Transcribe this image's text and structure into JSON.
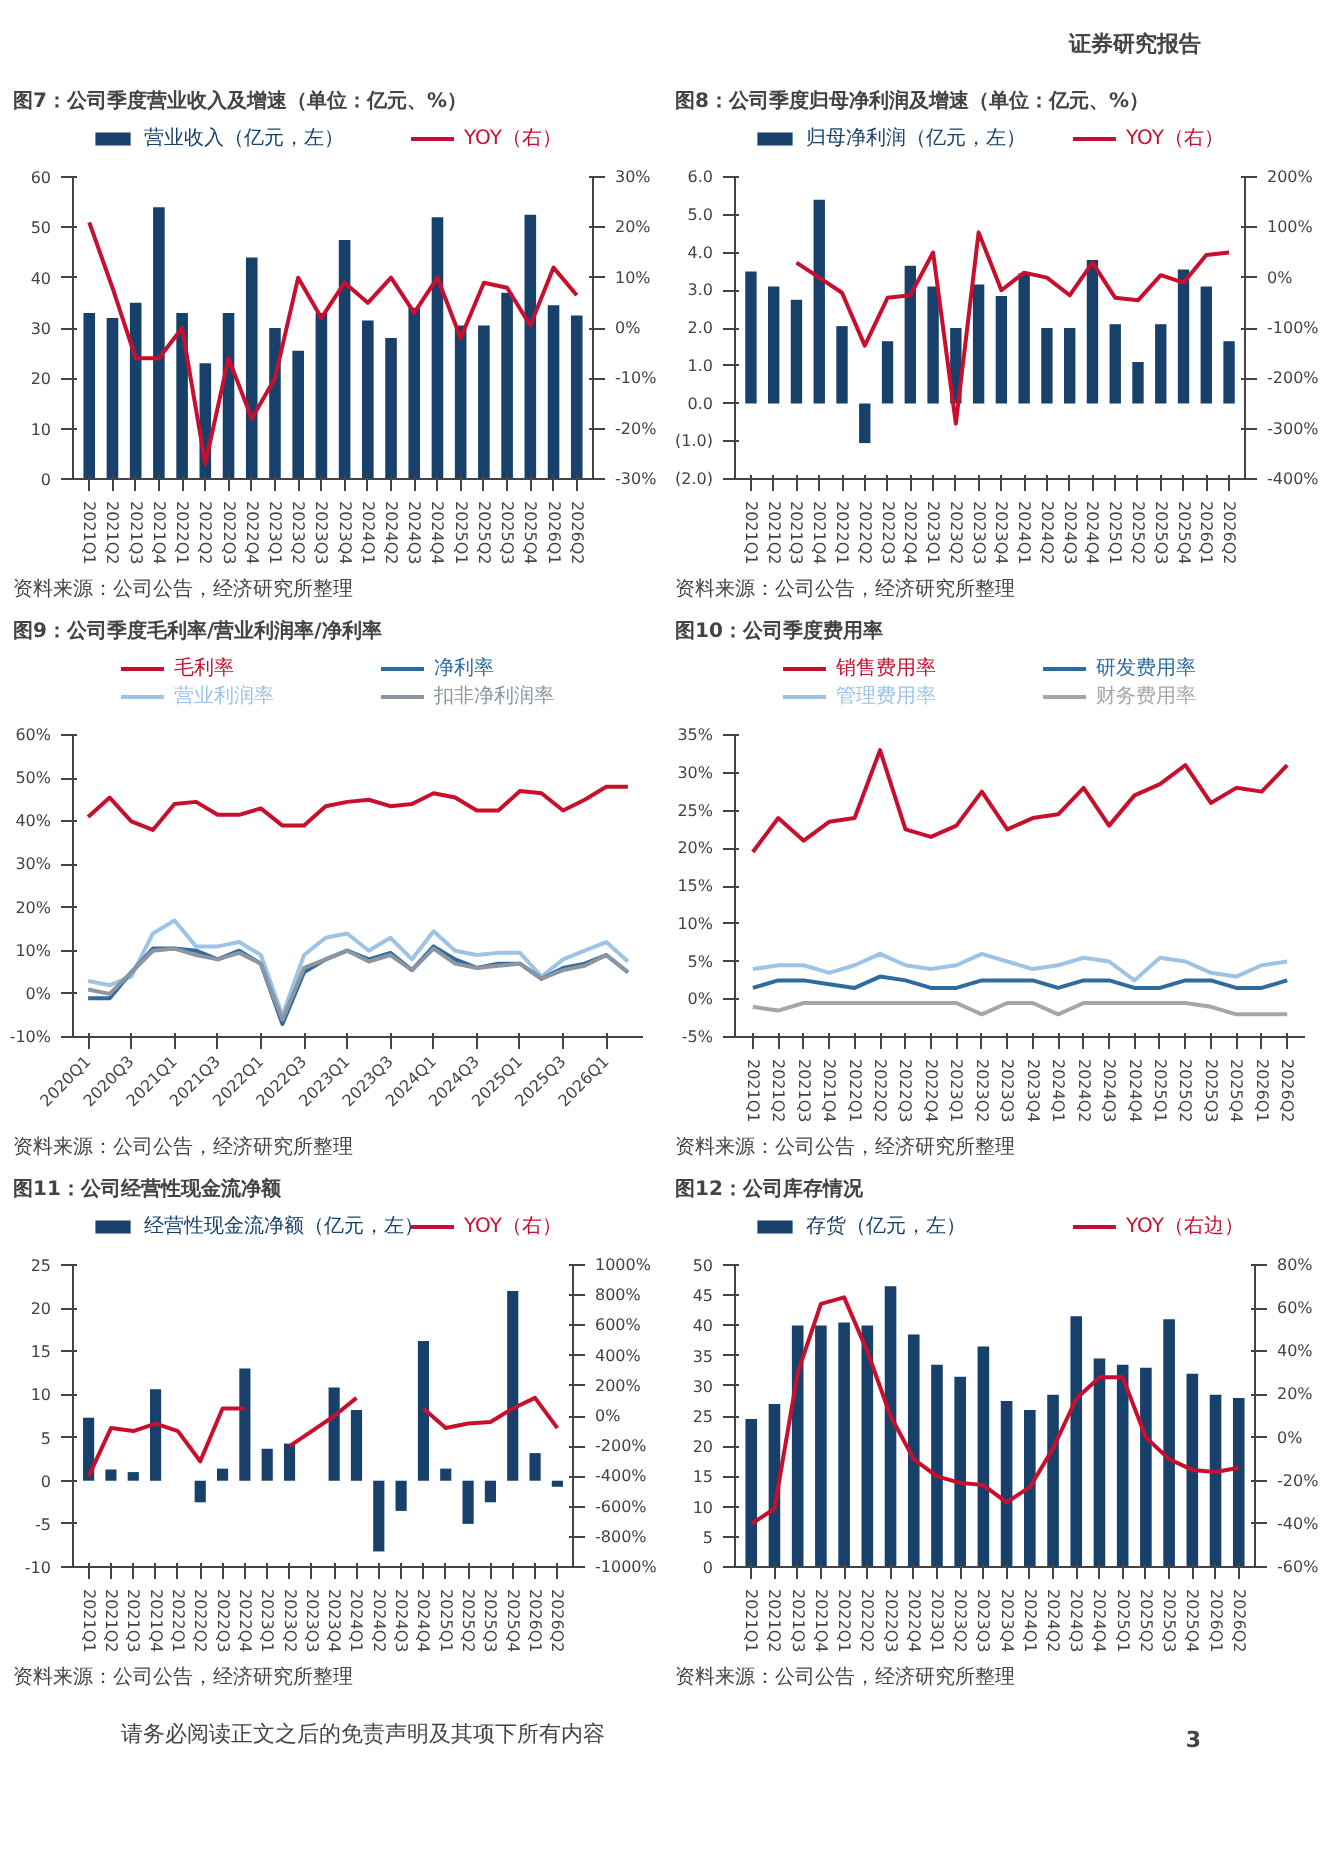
{
  "chart_data": [
    {
      "type": "bar",
      "title": "图7：公司季度营业收入及增速（单位：亿元、%）",
      "categories": [
        "2021Q1",
        "2021Q2",
        "2021Q3",
        "2021Q4",
        "2022Q1",
        "2022Q2",
        "2022Q3",
        "2022Q4",
        "2023Q1",
        "2023Q2",
        "2023Q3",
        "2023Q4",
        "2024Q1",
        "2024Q2",
        "2024Q3",
        "2024Q4",
        "2025Q1",
        "2025Q2",
        "2025Q3",
        "2025Q4",
        "2026Q1",
        "2026Q2"
      ],
      "series": [
        {
          "name": "营业收入（亿元，左）",
          "type": "bar",
          "color": "#17416b",
          "values": [
            33,
            32,
            35,
            54,
            33,
            23,
            33,
            44,
            30,
            25.5,
            33,
            47.5,
            31.5,
            28,
            34,
            52,
            30.5,
            30.5,
            37,
            52.5,
            34.5,
            32.5
          ]
        },
        {
          "name": "YOY（右）",
          "type": "line",
          "axis": "y2",
          "color": "#c8102e",
          "values": [
            21,
            8,
            -6,
            -6,
            0,
            -27,
            -6,
            -18,
            -10,
            10,
            2,
            9,
            5,
            10,
            3,
            10,
            -2,
            9,
            8,
            0.5,
            12,
            6.5
          ]
        }
      ],
      "ylim": [
        0,
        60
      ],
      "yticks": [
        0,
        10,
        20,
        30,
        40,
        50,
        60
      ],
      "y2lim": [
        -30,
        30
      ],
      "y2ticks": [
        {
          "value": -30,
          "label": "-30%"
        },
        {
          "value": -20,
          "label": "-20%"
        },
        {
          "value": -10,
          "label": "-10%"
        },
        {
          "value": 0,
          "label": "0%"
        },
        {
          "value": 10,
          "label": "10%"
        },
        {
          "value": 20,
          "label": "20%"
        },
        {
          "value": 30,
          "label": "30%"
        }
      ],
      "legend": "top",
      "annotations": [
        "证券研究报告",
        "资料来源：公司公告，经济研究所整理"
      ]
    },
    {
      "type": "bar",
      "title": "图8：公司季度归母净利润及增速（单位：亿元、%）",
      "categories": [
        "2021Q1",
        "2021Q2",
        "2021Q3",
        "2021Q4",
        "2022Q1",
        "2022Q2",
        "2022Q3",
        "2022Q4",
        "2023Q1",
        "2023Q2",
        "2023Q3",
        "2023Q4",
        "2024Q1",
        "2024Q2",
        "2024Q3",
        "2024Q4",
        "2025Q1",
        "2025Q2",
        "2025Q3",
        "2025Q4",
        "2026Q1",
        "2026Q2"
      ],
      "series": [
        {
          "name": "归母净利润（亿元，左）",
          "type": "bar",
          "color": "#17416b",
          "values": [
            3.5,
            3.1,
            2.75,
            5.4,
            2.05,
            -1.05,
            1.65,
            3.65,
            3.1,
            2.0,
            3.15,
            2.85,
            3.45,
            2.0,
            2.0,
            3.8,
            2.1,
            1.1,
            2.1,
            3.55,
            3.1,
            1.65
          ]
        },
        {
          "name": "YOY（右）",
          "type": "line",
          "axis": "y2",
          "color": "#c8102e",
          "values": [
            null,
            null,
            30,
            0,
            -30,
            -135,
            -40,
            -35,
            50,
            -290,
            90,
            -25,
            10,
            0,
            -35,
            30,
            -40,
            -45,
            5,
            -10,
            45,
            50
          ]
        }
      ],
      "ylim": [
        -2,
        6
      ],
      "yticks": [
        {
          "value": -2,
          "label": "(2.0)"
        },
        {
          "value": -1,
          "label": "(1.0)"
        },
        {
          "value": 0,
          "label": "0.0"
        },
        {
          "value": 1,
          "label": "1.0"
        },
        {
          "value": 2,
          "label": "2.0"
        },
        {
          "value": 3,
          "label": "3.0"
        },
        {
          "value": 4,
          "label": "4.0"
        },
        {
          "value": 5,
          "label": "5.0"
        },
        {
          "value": 6,
          "label": "6.0"
        }
      ],
      "y2lim": [
        -400,
        200
      ],
      "y2ticks": [
        {
          "value": -400,
          "label": "-400%"
        },
        {
          "value": -300,
          "label": "-300%"
        },
        {
          "value": -200,
          "label": "-200%"
        },
        {
          "value": -100,
          "label": "-100%"
        },
        {
          "value": 0,
          "label": "0%"
        },
        {
          "value": 100,
          "label": "100%"
        },
        {
          "value": 200,
          "label": "200%"
        }
      ],
      "legend": "top",
      "annotations": [
        "资料来源：公司公告，经济研究所整理"
      ]
    },
    {
      "type": "line",
      "title": "图9：公司季度毛利率/营业利润率/净利率",
      "categories": [
        "2020Q1",
        null,
        "2020Q3",
        null,
        "2021Q1",
        null,
        "2021Q3",
        null,
        "2022Q1",
        null,
        "2022Q3",
        null,
        "2023Q1",
        null,
        "2023Q3",
        null,
        "2024Q1",
        null,
        "2024Q3",
        null,
        "2025Q1",
        null,
        "2025Q3",
        null,
        "2026Q1",
        null
      ],
      "series": [
        {
          "name": "毛利率",
          "color": "#c8102e",
          "values": [
            41,
            45.5,
            40,
            38,
            44,
            44.5,
            41.5,
            41.5,
            43,
            39,
            39,
            43.5,
            44.5,
            45,
            43.5,
            44,
            46.5,
            45.5,
            42.5,
            42.5,
            47,
            46.5,
            42.5,
            45,
            48,
            48
          ]
        },
        {
          "name": "营业利润率",
          "color": "#9dc3e6",
          "values": [
            3,
            2,
            4,
            14,
            17,
            11,
            11,
            12,
            9,
            -5,
            9,
            13,
            14,
            10,
            13,
            8,
            14.5,
            10,
            9,
            9.5,
            9.5,
            4,
            8,
            10,
            12,
            7.5
          ]
        },
        {
          "name": "净利率",
          "color": "#2e6b9e",
          "values": [
            -1,
            -1,
            5,
            10.5,
            10.5,
            10,
            8,
            10,
            7,
            -7,
            5,
            8,
            10,
            8,
            9.5,
            5.5,
            11,
            8,
            6,
            7,
            7,
            3.5,
            6,
            7,
            9,
            5
          ]
        },
        {
          "name": "扣非净利润率",
          "color": "#8c96a0",
          "values": [
            1,
            0,
            5,
            10,
            10.5,
            9,
            8,
            9.5,
            7,
            -6,
            6,
            8,
            10,
            7.5,
            9,
            5.5,
            10.5,
            7,
            6,
            6.5,
            7,
            3.5,
            5.5,
            6.5,
            9,
            5
          ]
        }
      ],
      "ylim": [
        -10,
        60
      ],
      "yticks": [
        {
          "value": -10,
          "label": "-10%"
        },
        {
          "value": 0,
          "label": "0%"
        },
        {
          "value": 10,
          "label": "10%"
        },
        {
          "value": 20,
          "label": "20%"
        },
        {
          "value": 30,
          "label": "30%"
        },
        {
          "value": 40,
          "label": "40%"
        },
        {
          "value": 50,
          "label": "50%"
        },
        {
          "value": 60,
          "label": "60%"
        }
      ],
      "legend": "top",
      "annotations": [
        "资料来源：公司公告，经济研究所整理"
      ]
    },
    {
      "type": "line",
      "title": "图10：公司季度费用率",
      "categories": [
        "2021Q1",
        "2021Q2",
        "2021Q3",
        "2021Q4",
        "2022Q1",
        "2022Q2",
        "2022Q3",
        "2022Q4",
        "2023Q1",
        "2023Q2",
        "2023Q3",
        "2023Q4",
        "2024Q1",
        "2024Q2",
        "2024Q3",
        "2024Q4",
        "2025Q1",
        "2025Q2",
        "2025Q3",
        "2025Q4",
        "2026Q1",
        "2026Q2"
      ],
      "series": [
        {
          "name": "销售费用率",
          "color": "#c8102e",
          "values": [
            19.5,
            24,
            21,
            23.5,
            24,
            33,
            22.5,
            21.5,
            23,
            27.5,
            22.5,
            24,
            24.5,
            28,
            23,
            27,
            28.5,
            31,
            26,
            28,
            27.5,
            31
          ]
        },
        {
          "name": "管理费用率",
          "color": "#9dc3e6",
          "values": [
            4,
            4.5,
            4.5,
            3.5,
            4.5,
            6,
            4.5,
            4,
            4.5,
            6,
            5,
            4,
            4.5,
            5.5,
            5,
            2.5,
            5.5,
            5,
            3.5,
            3,
            4.5,
            5
          ]
        },
        {
          "name": "研发费用率",
          "color": "#2e6b9e",
          "values": [
            1.5,
            2.5,
            2.5,
            2,
            1.5,
            3,
            2.5,
            1.5,
            1.5,
            2.5,
            2.5,
            2.5,
            1.5,
            2.5,
            2.5,
            1.5,
            1.5,
            2.5,
            2.5,
            1.5,
            1.5,
            2.5
          ]
        },
        {
          "name": "财务费用率",
          "color": "#a6a6a6",
          "values": [
            -1,
            -1.5,
            -0.5,
            -0.5,
            -0.5,
            -0.5,
            -0.5,
            -0.5,
            -0.5,
            -2,
            -0.5,
            -0.5,
            -2,
            -0.5,
            -0.5,
            -0.5,
            -0.5,
            -0.5,
            -1,
            -2,
            -2,
            -2
          ]
        }
      ],
      "ylim": [
        -5,
        35
      ],
      "yticks": [
        {
          "value": -5,
          "label": "-5%"
        },
        {
          "value": 0,
          "label": "0%"
        },
        {
          "value": 5,
          "label": "5%"
        },
        {
          "value": 10,
          "label": "10%"
        },
        {
          "value": 15,
          "label": "15%"
        },
        {
          "value": 20,
          "label": "20%"
        },
        {
          "value": 25,
          "label": "25%"
        },
        {
          "value": 30,
          "label": "30%"
        },
        {
          "value": 35,
          "label": "35%"
        }
      ],
      "legend": "top",
      "annotations": [
        "资料来源：公司公告，经济研究所整理"
      ]
    },
    {
      "type": "bar",
      "title": "图11：公司经营性现金流净额",
      "categories": [
        "2021Q1",
        "2021Q2",
        "2021Q3",
        "2021Q4",
        "2022Q1",
        "2022Q2",
        "2022Q3",
        "2022Q4",
        "2023Q1",
        "2023Q2",
        "2023Q3",
        "2023Q4",
        "2024Q1",
        "2024Q2",
        "2024Q3",
        "2024Q4",
        "2025Q1",
        "2025Q2",
        "2025Q3",
        "2025Q4",
        "2026Q1",
        "2026Q2"
      ],
      "series": [
        {
          "name": "经营性现金流净额（亿元，左）",
          "type": "bar",
          "color": "#17416b",
          "values": [
            7.3,
            1.3,
            1.0,
            10.6,
            0,
            -2.5,
            1.4,
            13,
            3.7,
            4.3,
            0,
            10.8,
            8.2,
            -8.2,
            -3.5,
            16.2,
            1.4,
            -5,
            -2.5,
            22,
            3.2,
            -0.7
          ]
        },
        {
          "name": "YOY（右）",
          "type": "line",
          "axis": "y2",
          "color": "#c8102e",
          "values": [
            -400,
            -80,
            -100,
            -50,
            -100,
            -300,
            50,
            50,
            null,
            -200,
            -100,
            0,
            120,
            null,
            null,
            50,
            -80,
            -50,
            -40,
            50,
            120,
            -80
          ]
        }
      ],
      "ylim": [
        -10,
        25
      ],
      "yticks": [
        -10,
        -5,
        0,
        5,
        10,
        15,
        20,
        25
      ],
      "y2lim": [
        -1000,
        1000
      ],
      "y2ticks": [
        {
          "value": -1000,
          "label": "-1000%"
        },
        {
          "value": -800,
          "label": "-800%"
        },
        {
          "value": -600,
          "label": "-600%"
        },
        {
          "value": -400,
          "label": "-400%"
        },
        {
          "value": -200,
          "label": "-200%"
        },
        {
          "value": 0,
          "label": "0%"
        },
        {
          "value": 200,
          "label": "200%"
        },
        {
          "value": 400,
          "label": "400%"
        },
        {
          "value": 600,
          "label": "600%"
        },
        {
          "value": 800,
          "label": "800%"
        },
        {
          "value": 1000,
          "label": "1000%"
        }
      ],
      "legend": "top",
      "annotations": [
        "资料来源：公司公告，经济研究所整理"
      ]
    },
    {
      "type": "bar",
      "title": "图12：公司库存情况",
      "categories": [
        "2021Q1",
        "2021Q2",
        "2021Q3",
        "2021Q4",
        "2022Q1",
        "2022Q2",
        "2022Q3",
        "2022Q4",
        "2023Q1",
        "2023Q2",
        "2023Q3",
        "2023Q4",
        "2024Q1",
        "2024Q2",
        "2024Q3",
        "2024Q4",
        "2025Q1",
        "2025Q2",
        "2025Q3",
        "2025Q4",
        "2026Q1",
        "2026Q2"
      ],
      "series": [
        {
          "name": "存货（亿元，左）",
          "type": "bar",
          "color": "#17416b",
          "values": [
            24.5,
            27,
            40,
            40,
            40.5,
            40,
            46.5,
            38.5,
            33.5,
            31.5,
            36.5,
            27.5,
            26,
            28.5,
            41.5,
            34.5,
            33.5,
            33,
            41,
            32,
            28.5,
            28
          ]
        },
        {
          "name": "YOY（右边）",
          "type": "line",
          "axis": "y2",
          "color": "#c8102e",
          "values": [
            -40,
            -33,
            30,
            62,
            65,
            40,
            10,
            -10,
            -18,
            -21,
            -22,
            -30,
            -23,
            -5,
            18,
            28,
            28,
            0,
            -10,
            -15,
            -16,
            -14
          ]
        }
      ],
      "ylim": [
        0,
        50
      ],
      "yticks": [
        0,
        5,
        10,
        15,
        20,
        25,
        30,
        35,
        40,
        45,
        50
      ],
      "y2lim": [
        -60,
        80
      ],
      "y2ticks": [
        {
          "value": -60,
          "label": "-60%"
        },
        {
          "value": -40,
          "label": "-40%"
        },
        {
          "value": -20,
          "label": "-20%"
        },
        {
          "value": 0,
          "label": "0%"
        },
        {
          "value": 20,
          "label": "20%"
        },
        {
          "value": 40,
          "label": "40%"
        },
        {
          "value": 60,
          "label": "60%"
        },
        {
          "value": 80,
          "label": "80%"
        }
      ],
      "legend": "top",
      "annotations": [
        "资料来源：公司公告，经济研究所整理",
        "请务必阅读正文之后的免责声明及其项下所有内容",
        "3"
      ]
    }
  ]
}
